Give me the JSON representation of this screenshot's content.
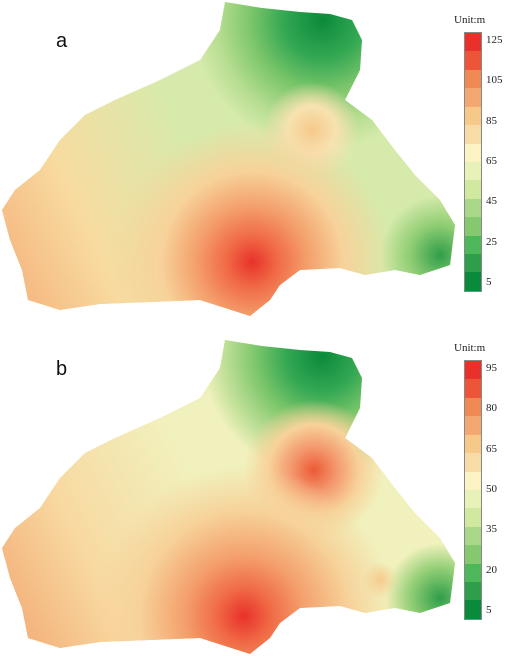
{
  "panels": [
    {
      "label": "a",
      "unit": "Unit:m",
      "ticks": [
        "125",
        "105",
        "85",
        "65",
        "45",
        "25",
        "5"
      ],
      "tick_values": [
        125,
        105,
        85,
        65,
        45,
        25,
        5
      ]
    },
    {
      "label": "b",
      "unit": "Unit:m",
      "ticks": [
        "95",
        "80",
        "65",
        "50",
        "35",
        "20",
        "5"
      ],
      "tick_values": [
        95,
        80,
        65,
        50,
        35,
        20,
        5
      ]
    }
  ],
  "colors": {
    "low": "#0a8a3a",
    "green": "#4cb85a",
    "light_green": "#a9d88a",
    "pale": "#e8f2b8",
    "cream": "#fbf3c4",
    "tan": "#f6c98a",
    "orange": "#f08a55",
    "red": "#e8312a"
  }
}
